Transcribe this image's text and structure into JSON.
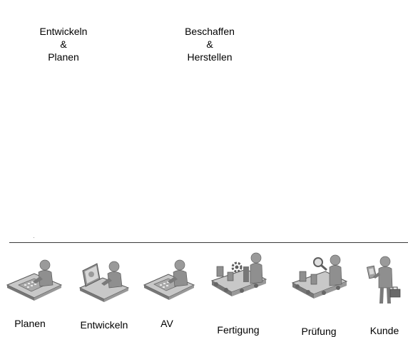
{
  "phases": [
    {
      "line1": "Entwickeln",
      "line2": "&",
      "line3": "Planen"
    },
    {
      "line1": "Beschaffen",
      "line2": "&",
      "line3": "Herstellen"
    }
  ],
  "steps": [
    {
      "label": "Planen",
      "icon": "person-at-desk-icon"
    },
    {
      "label": "Entwickeln",
      "icon": "person-at-computer-icon"
    },
    {
      "label": "AV",
      "icon": "person-at-desk-icon"
    },
    {
      "label": "Fertigung",
      "icon": "conveyor-worker-icon"
    },
    {
      "label": "Prüfung",
      "icon": "conveyor-inspector-icon"
    },
    {
      "label": "Kunde",
      "icon": "customer-icon"
    }
  ],
  "colors": {
    "figure": "#8f8f8f",
    "figure_dark": "#5e5e5e",
    "figure_light": "#c8c8c8",
    "line": "#3a3a3a"
  }
}
